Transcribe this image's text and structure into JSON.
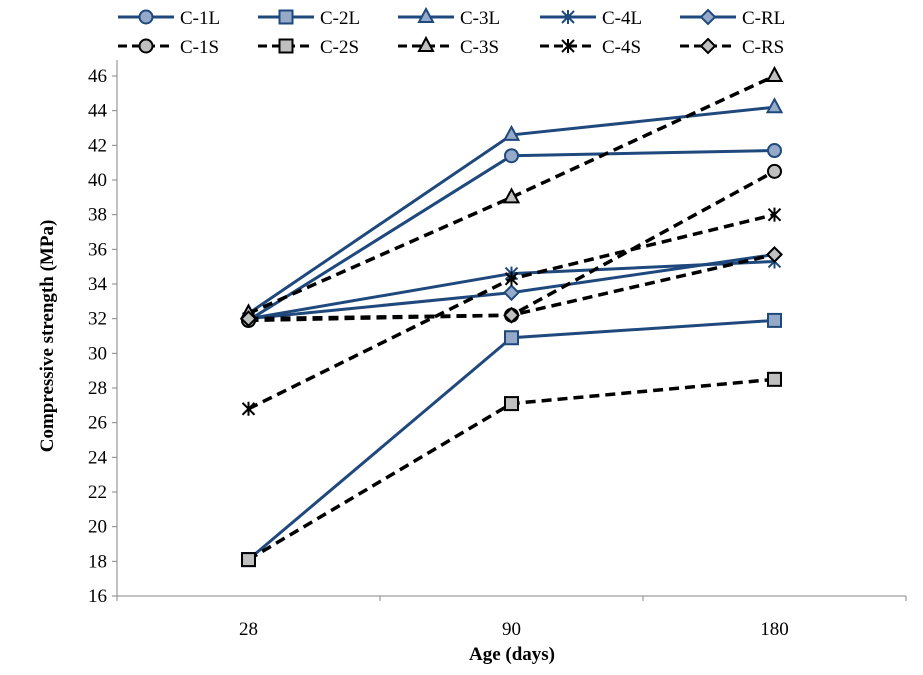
{
  "chart_data": {
    "type": "line",
    "title": "",
    "xlabel": "Age (days)",
    "ylabel": "Compressive strength (MPa)",
    "categories": [
      "28",
      "90",
      "180"
    ],
    "ylim": [
      16,
      46
    ],
    "yticks": [
      16,
      18,
      20,
      22,
      24,
      26,
      28,
      30,
      32,
      34,
      36,
      38,
      40,
      42,
      44,
      46
    ],
    "grid": false,
    "legend_position": "top",
    "colors": {
      "solid": "#1F497D",
      "solid_fill": "#95A9C8",
      "dashed": "#000000",
      "dashed_fill": "#C0C0C0"
    },
    "series": [
      {
        "name": "C-1L",
        "style": "solid",
        "marker": "circle",
        "values": [
          31.9,
          41.4,
          41.7
        ]
      },
      {
        "name": "C-2L",
        "style": "solid",
        "marker": "square",
        "values": [
          18.1,
          30.9,
          31.9
        ]
      },
      {
        "name": "C-3L",
        "style": "solid",
        "marker": "triangle",
        "values": [
          32.3,
          42.6,
          44.2
        ]
      },
      {
        "name": "C-4L",
        "style": "solid",
        "marker": "star",
        "values": [
          32.0,
          34.6,
          35.3
        ]
      },
      {
        "name": "C-RL",
        "style": "solid",
        "marker": "diamond",
        "values": [
          32.0,
          33.5,
          35.7
        ]
      },
      {
        "name": "C-1S",
        "style": "dashed",
        "marker": "circle",
        "values": [
          31.9,
          32.2,
          40.5
        ]
      },
      {
        "name": "C-2S",
        "style": "dashed",
        "marker": "square",
        "values": [
          18.1,
          27.1,
          28.5
        ]
      },
      {
        "name": "C-3S",
        "style": "dashed",
        "marker": "triangle",
        "values": [
          32.3,
          39.0,
          46.0
        ]
      },
      {
        "name": "C-4S",
        "style": "dashed",
        "marker": "star",
        "values": [
          26.8,
          34.3,
          38.0
        ]
      },
      {
        "name": "C-RS",
        "style": "dashed",
        "marker": "diamond",
        "values": [
          32.0,
          32.2,
          35.7
        ]
      }
    ]
  }
}
